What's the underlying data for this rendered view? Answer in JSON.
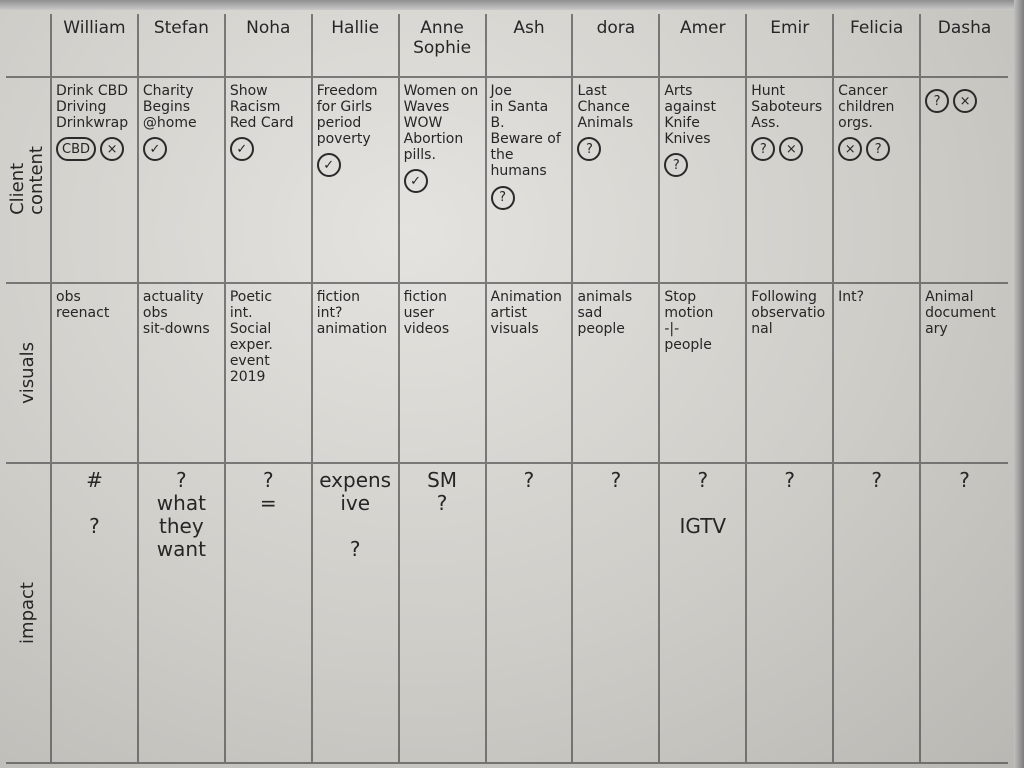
{
  "row_labels": {
    "content": "Client\ncontent",
    "visuals": "visuals",
    "impact": "impact"
  },
  "columns": [
    {
      "name": "William",
      "content": "Drink CBD\nDriving\nDrinkwrap",
      "marks": [
        "CBD",
        "×"
      ],
      "visuals": "obs\nreenact",
      "impact": "#\n\n?"
    },
    {
      "name": "Stefan",
      "content": "Charity\nBegins\n@home",
      "marks": [
        "✓"
      ],
      "visuals": "actuality\nobs\nsit-downs",
      "impact": "?\nwhat\nthey\nwant"
    },
    {
      "name": "Noha",
      "content": "Show\nRacism\nRed Card",
      "marks": [
        "✓"
      ],
      "visuals": "Poetic\nint.\nSocial\nexper.\nevent\n2019",
      "impact": "?\n="
    },
    {
      "name": "Hallie",
      "content": "Freedom\nfor Girls\nperiod\npoverty",
      "marks": [
        "✓"
      ],
      "visuals": "fiction\nint?\nanimation",
      "impact": "expensive\n\n?"
    },
    {
      "name": "Anne Sophie",
      "content": "Women on Waves\nWOW\nAbortion\npills.",
      "marks": [
        "✓"
      ],
      "visuals": "fiction\nuser\nvideos",
      "impact": "SM\n?"
    },
    {
      "name": "Ash",
      "content": "Joe\nin Santa\nB.\nBeware of the\nhumans",
      "marks": [
        "?"
      ],
      "visuals": "Animation\nartist\nvisuals",
      "impact": "?"
    },
    {
      "name": "dora",
      "content": "Last\nChance Animals",
      "marks": [
        "?"
      ],
      "visuals": "animals\nsad\npeople",
      "impact": "?"
    },
    {
      "name": "Amer",
      "content": "Arts\nagainst\nKnife\nKnives",
      "marks": [
        "?"
      ],
      "visuals": "Stop\nmotion\n-|-\npeople",
      "impact": "?\n\nIGTV"
    },
    {
      "name": "Emir",
      "content": "Hunt\nSaboteurs\nAss.",
      "marks": [
        "?",
        "×"
      ],
      "visuals": "Following\nobservational",
      "impact": "?"
    },
    {
      "name": "Felicia",
      "content": "Cancer\nchildren\norgs.",
      "marks": [
        "×",
        "?"
      ],
      "visuals": "Int?",
      "impact": "?"
    },
    {
      "name": "Dasha",
      "content": "",
      "marks": [
        "?",
        "×"
      ],
      "visuals": "Animal\ndocumentary",
      "impact": "?"
    }
  ]
}
